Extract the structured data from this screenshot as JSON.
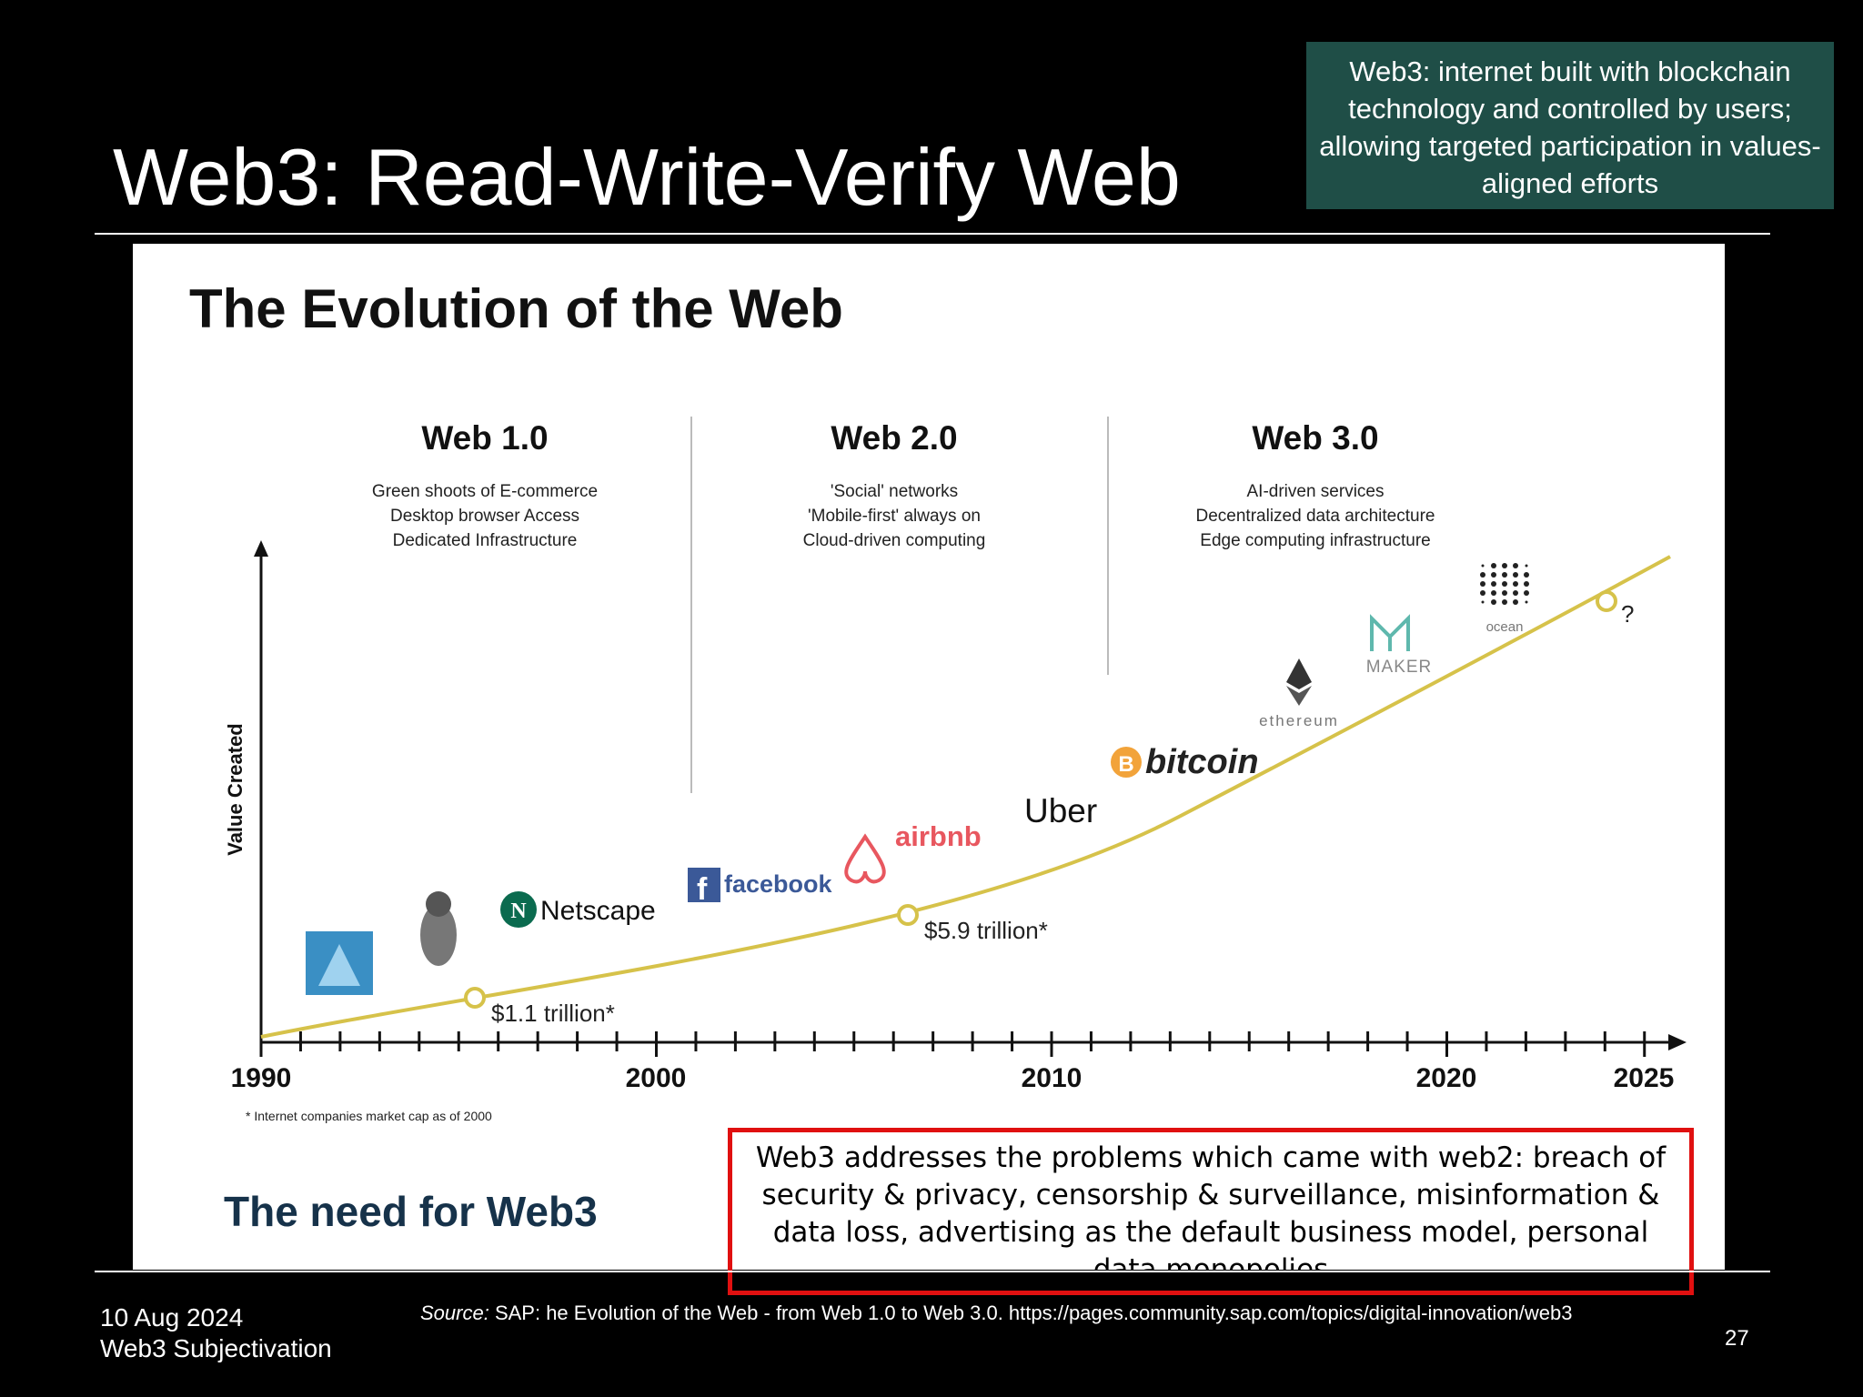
{
  "slide": {
    "title": "Web3: Read-Write-Verify Web",
    "definition": "Web3: internet built with blockchain technology and controlled by users; allowing targeted participation in values-aligned efforts",
    "problems": "Web3 addresses the problems which came with web2: breach of security & privacy, censorship & surveillance, misinformation & data loss, advertising as the default business model, personal data monopolies",
    "footer": {
      "date": "10 Aug 2024",
      "event": "Web3 Subjectivation",
      "source_label": "Source:",
      "source_text": "SAP: he Evolution of the Web - from Web 1.0 to Web 3.0. https://pages.community.sap.com/topics/digital-innovation/web3",
      "page_number": "27"
    }
  },
  "figure": {
    "title": "The Evolution of the Web",
    "eras": [
      {
        "name": "Web 1.0",
        "lines": [
          "Green shoots of E-commerce",
          "Desktop browser Access",
          "Dedicated Infrastructure"
        ]
      },
      {
        "name": "Web 2.0",
        "lines": [
          "'Social' networks",
          "'Mobile-first' always on",
          "Cloud-driven computing"
        ]
      },
      {
        "name": "Web 3.0",
        "lines": [
          "AI-driven services",
          "Decentralized data architecture",
          "Edge computing infrastructure"
        ]
      }
    ],
    "y_axis_label": "Value Created",
    "x_ticks": [
      "1990",
      "2000",
      "2010",
      "2020",
      "2025"
    ],
    "milestones": [
      {
        "year": 1995.5,
        "label": "$1.1 trillion*"
      },
      {
        "year": 2006.5,
        "label": "$5.9 trillion*"
      },
      {
        "year": 2024,
        "label": "?"
      }
    ],
    "footnote": "* Internet companies market cap as of 2000",
    "need_heading": "The need for Web3",
    "logos": {
      "netscape": "Netscape",
      "facebook": "facebook",
      "airbnb": "airbnb",
      "uber": "Uber",
      "bitcoin": "bitcoin",
      "ethereum": "ethereum",
      "maker": "MAKER",
      "ocean": "ocean"
    },
    "colors": {
      "curve": "#d6c24a",
      "text": "#111111",
      "need_heading": "#16324a",
      "bitcoin": "#f2a33a",
      "airbnb": "#e8575f",
      "facebook": "#3b5998"
    }
  }
}
